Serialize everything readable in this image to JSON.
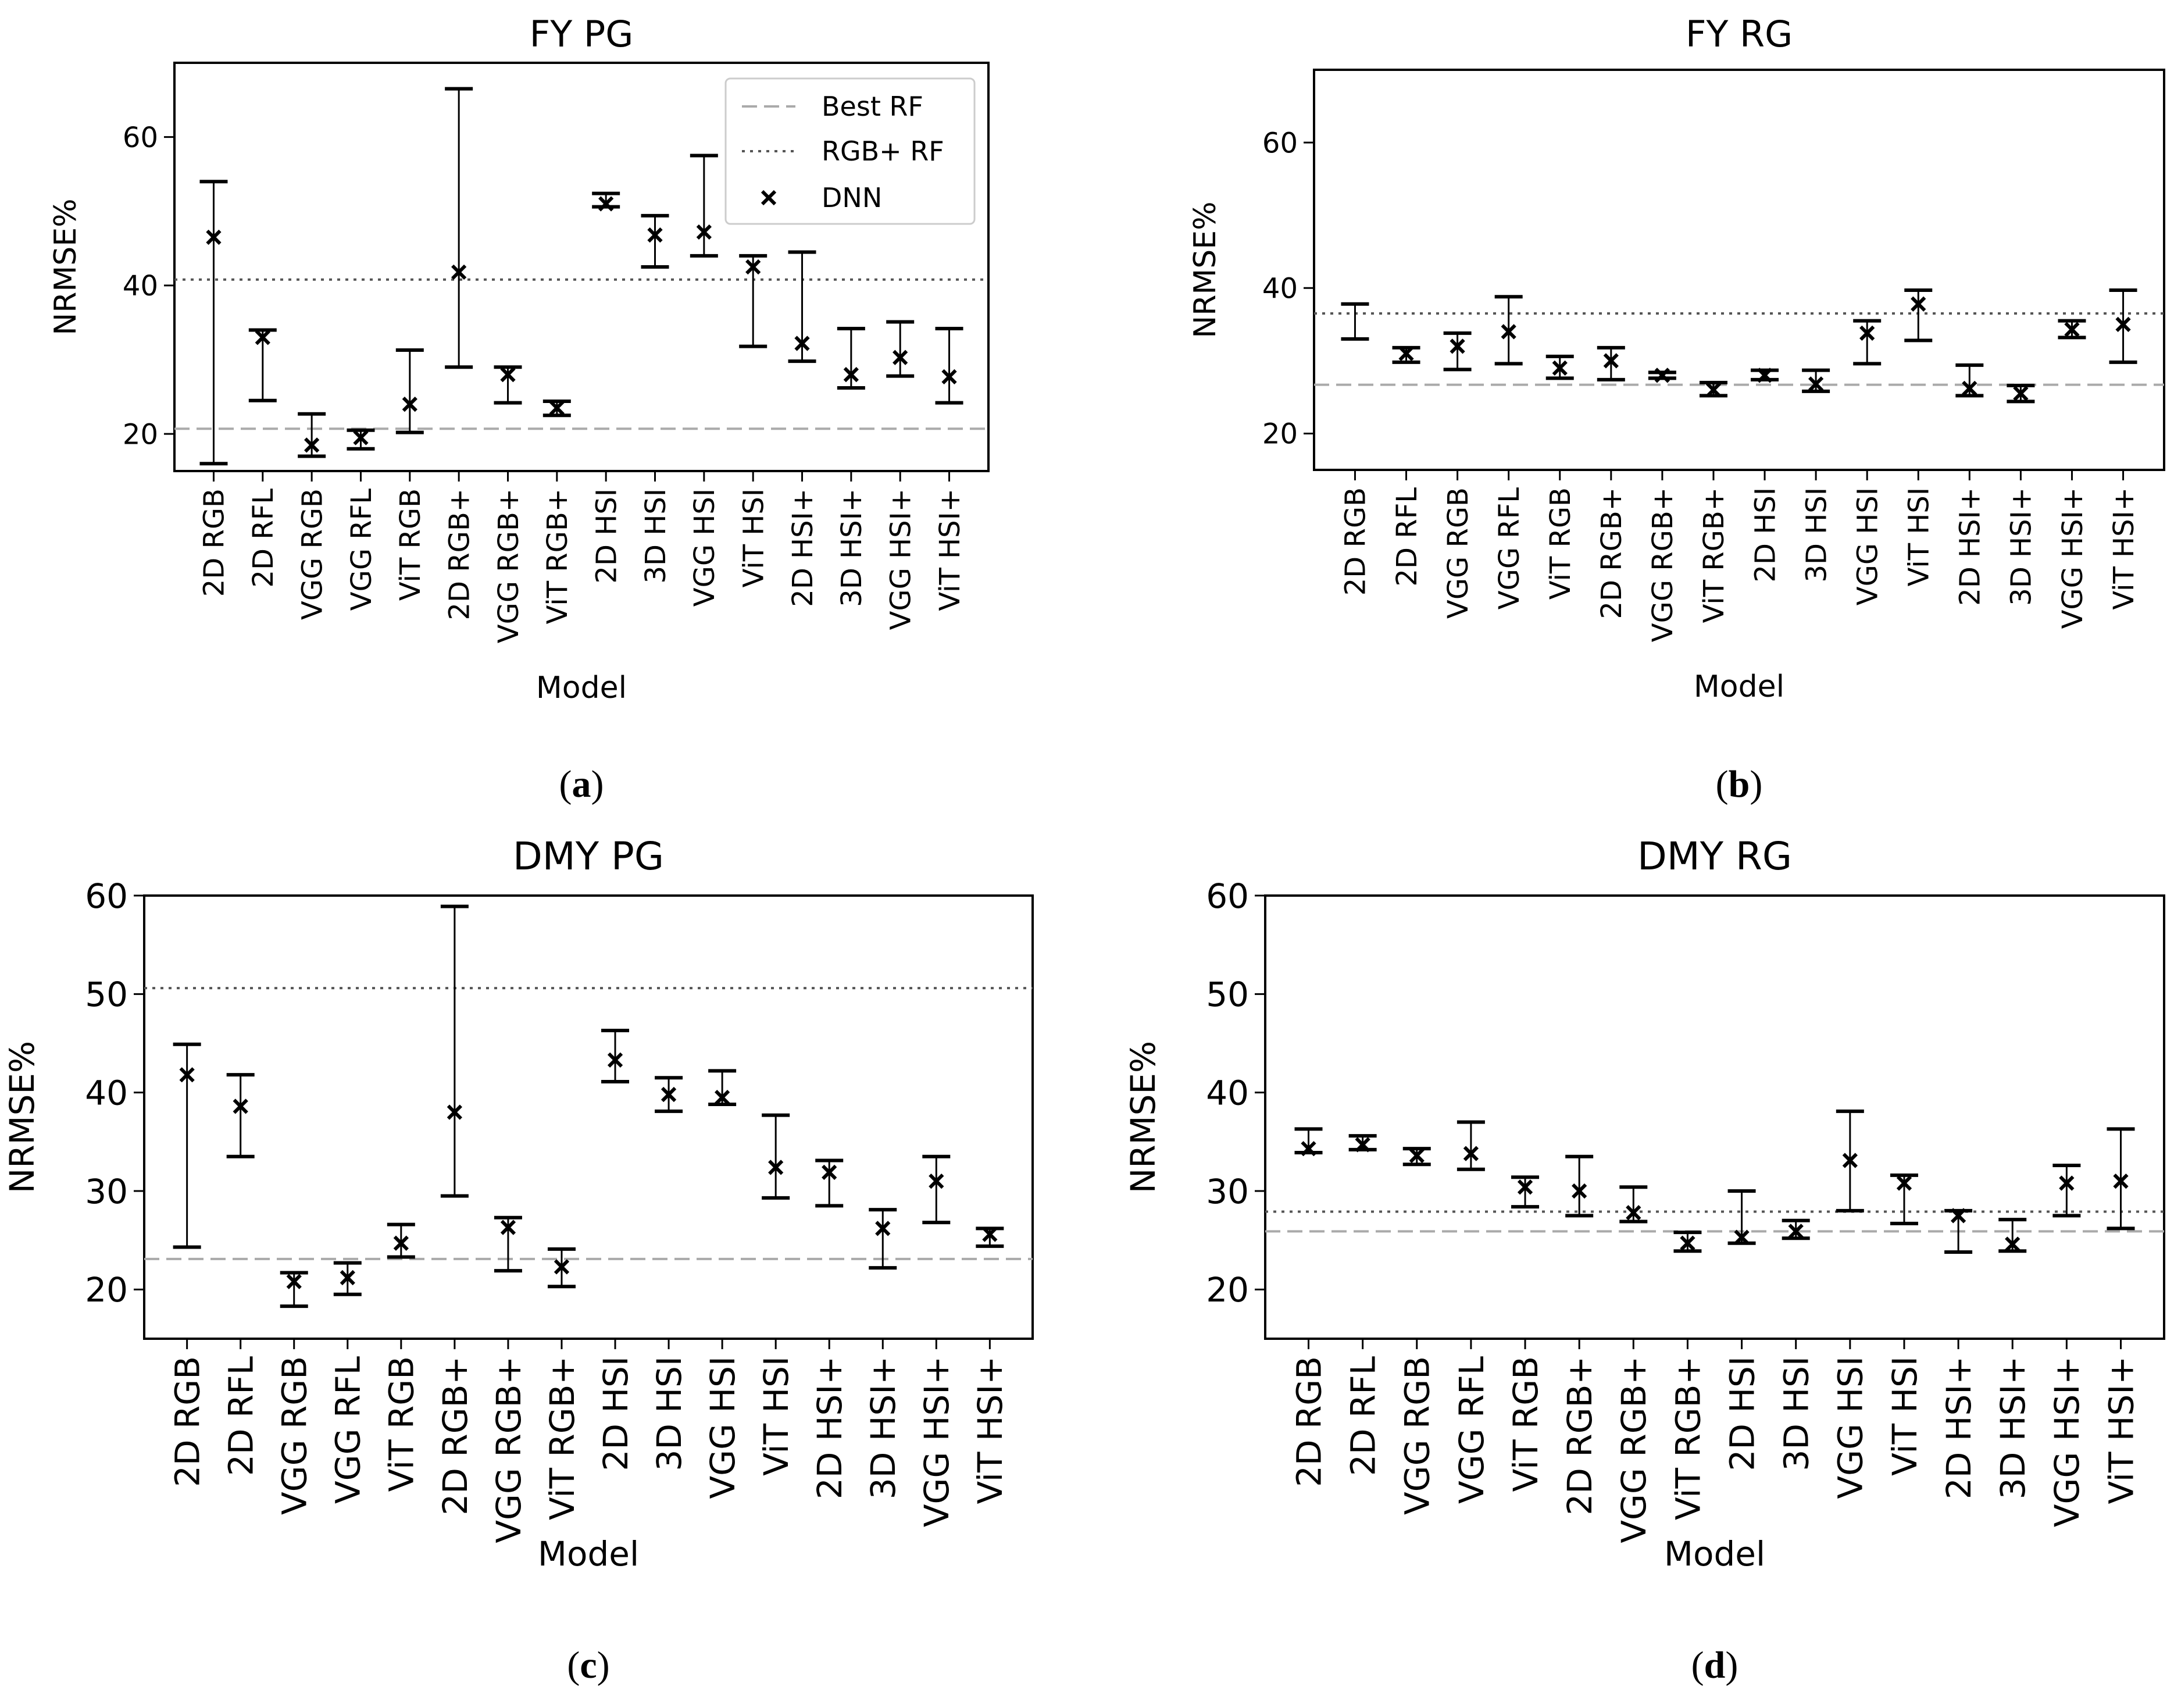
{
  "chart_data": [
    {
      "id": "a",
      "type": "scatter",
      "title": "FY PG",
      "caption_letter": "a",
      "xlabel": "Model",
      "ylabel": "NRMSE%",
      "ylim": [
        15,
        70
      ],
      "yticks": [
        20,
        40,
        60
      ],
      "categories": [
        "2D RGB",
        "2D RFL",
        "VGG RGB",
        "VGG RFL",
        "ViT RGB",
        "2D RGB+",
        "VGG RGB+",
        "ViT RGB+",
        "2D HSI",
        "3D HSI",
        "VGG HSI",
        "ViT HSI",
        "2D HSI+",
        "3D HSI+",
        "VGG HSI+",
        "ViT HSI+"
      ],
      "series": [
        {
          "name": "DNN",
          "values": [
            46.5,
            33,
            18.5,
            19.5,
            24,
            41.8,
            28,
            23.5,
            51,
            46.8,
            47.2,
            42.5,
            32.2,
            28,
            30.3,
            27.7
          ],
          "err_low": [
            16,
            24.5,
            17,
            18,
            20.2,
            29,
            24.2,
            22.5,
            50.6,
            42.5,
            44,
            31.8,
            29.8,
            26.2,
            27.8,
            24.2
          ],
          "err_high": [
            54,
            34,
            22.7,
            20.5,
            31.3,
            66.5,
            29,
            24.4,
            52.4,
            49.4,
            57.5,
            44,
            44.5,
            34.2,
            35.1,
            34.2
          ]
        }
      ],
      "reference_lines": [
        {
          "name": "Best RF",
          "value": 20.7,
          "style": "dashed"
        },
        {
          "name": "RGB+ RF",
          "value": 40.8,
          "style": "dotted"
        }
      ],
      "legend": {
        "position": "top-right",
        "entries": [
          "Best RF",
          "RGB+ RF",
          "DNN"
        ]
      }
    },
    {
      "id": "b",
      "type": "scatter",
      "title": "FY RG",
      "caption_letter": "b",
      "xlabel": "Model",
      "ylabel": "NRMSE%",
      "ylim": [
        15,
        70
      ],
      "yticks": [
        20,
        40,
        60
      ],
      "categories": [
        "2D RGB",
        "2D RFL",
        "VGG RGB",
        "VGG RFL",
        "ViT RGB",
        "2D RGB+",
        "VGG RGB+",
        "ViT RGB+",
        "2D HSI",
        "3D HSI",
        "VGG HSI",
        "ViT HSI",
        "2D HSI+",
        "3D HSI+",
        "VGG HSI+",
        "ViT HSI+"
      ],
      "series": [
        {
          "name": "DNN",
          "values": [
            null,
            31,
            32,
            34,
            29,
            30,
            28,
            26,
            28,
            26.8,
            33.8,
            37.8,
            26.2,
            25.5,
            34.3,
            35
          ],
          "err_low": [
            33,
            29.8,
            28.8,
            29.6,
            27.6,
            27.4,
            27.6,
            25.2,
            27.4,
            25.8,
            29.6,
            32.8,
            25.2,
            24.4,
            33.2,
            29.8
          ],
          "err_high": [
            37.8,
            31.8,
            33.8,
            38.8,
            30.6,
            31.8,
            28.4,
            27,
            28.7,
            28.7,
            35.5,
            39.7,
            29.4,
            26.6,
            35.5,
            39.7
          ]
        }
      ],
      "reference_lines": [
        {
          "name": "Best RF",
          "value": 26.7,
          "style": "dashed"
        },
        {
          "name": "RGB+ RF",
          "value": 36.5,
          "style": "dotted"
        }
      ],
      "legend": null
    },
    {
      "id": "c",
      "type": "scatter",
      "title": "DMY PG",
      "caption_letter": "c",
      "xlabel": "Model",
      "ylabel": "NRMSE%",
      "ylim": [
        15,
        60
      ],
      "yticks": [
        20,
        30,
        40,
        50,
        60
      ],
      "categories": [
        "2D RGB",
        "2D RFL",
        "VGG RGB",
        "VGG RFL",
        "ViT RGB",
        "2D RGB+",
        "VGG RGB+",
        "ViT RGB+",
        "2D HSI",
        "3D HSI",
        "VGG HSI",
        "ViT HSI",
        "2D HSI+",
        "3D HSI+",
        "VGG HSI+",
        "ViT HSI+"
      ],
      "series": [
        {
          "name": "DNN",
          "values": [
            41.8,
            38.6,
            20.8,
            21.2,
            24.7,
            38,
            26.3,
            22.3,
            43.3,
            39.8,
            39.5,
            32.4,
            31.9,
            26.2,
            31,
            25.6
          ],
          "err_low": [
            24.3,
            33.5,
            18.3,
            19.5,
            23.3,
            29.5,
            21.9,
            20.3,
            41.1,
            38.1,
            38.8,
            29.3,
            28.5,
            22.2,
            26.8,
            24.4
          ],
          "err_high": [
            44.9,
            41.8,
            21.7,
            22.7,
            26.6,
            58.9,
            27.3,
            24.1,
            46.3,
            41.5,
            42.2,
            37.7,
            33.1,
            28.1,
            33.5,
            26.2
          ]
        }
      ],
      "reference_lines": [
        {
          "name": "Best RF",
          "value": 23.1,
          "style": "dashed"
        },
        {
          "name": "RGB+ RF",
          "value": 50.6,
          "style": "dotted"
        }
      ],
      "legend": null
    },
    {
      "id": "d",
      "type": "scatter",
      "title": "DMY RG",
      "caption_letter": "d",
      "xlabel": "Model",
      "ylabel": "NRMSE%",
      "ylim": [
        15,
        60
      ],
      "yticks": [
        20,
        30,
        40,
        50,
        60
      ],
      "categories": [
        "2D RGB",
        "2D RFL",
        "VGG RGB",
        "VGG RFL",
        "ViT RGB",
        "2D RGB+",
        "VGG RGB+",
        "ViT RGB+",
        "2D HSI",
        "3D HSI",
        "VGG HSI",
        "ViT HSI",
        "2D HSI+",
        "3D HSI+",
        "VGG HSI+",
        "ViT HSI+"
      ],
      "series": [
        {
          "name": "DNN",
          "values": [
            34.3,
            34.7,
            33.6,
            33.8,
            30.4,
            30,
            27.8,
            24.7,
            25.3,
            25.9,
            33.1,
            30.8,
            27.5,
            24.6,
            30.8,
            31
          ],
          "err_low": [
            33.9,
            34.2,
            32.7,
            32.2,
            28.4,
            27.5,
            26.9,
            23.9,
            24.7,
            25.2,
            28,
            26.7,
            23.8,
            23.9,
            27.5,
            26.2
          ],
          "err_high": [
            36.3,
            35.6,
            34.3,
            37,
            31.4,
            33.5,
            30.4,
            25.8,
            30,
            27,
            38.1,
            31.6,
            28,
            27.1,
            32.6,
            36.3
          ]
        }
      ],
      "reference_lines": [
        {
          "name": "Best RF",
          "value": 25.9,
          "style": "dashed"
        },
        {
          "name": "RGB+ RF",
          "value": 27.9,
          "style": "dotted"
        }
      ],
      "legend": null
    }
  ]
}
